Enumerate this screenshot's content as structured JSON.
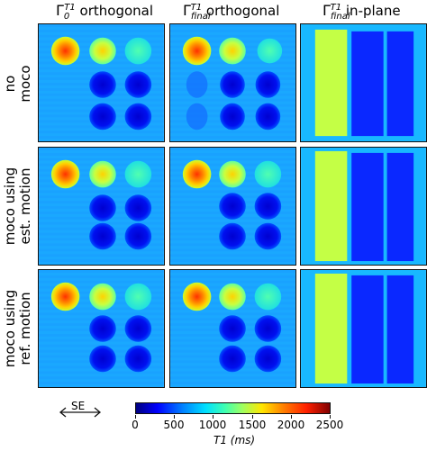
{
  "columns": [
    {
      "prefix": "Γ",
      "sub": "0",
      "sup": "T1",
      "suffix": " orthogonal"
    },
    {
      "prefix": "Γ",
      "sub": "final",
      "sup": "T1",
      "suffix": " orthogonal"
    },
    {
      "prefix": "Γ",
      "sub": "final",
      "sup": "T1",
      "suffix": " in-plane"
    }
  ],
  "rows": [
    {
      "line1": "no",
      "line2": "moco"
    },
    {
      "line1": "moco using",
      "line2": "est. motion"
    },
    {
      "line1": "moco using",
      "line2": "ref. motion"
    }
  ],
  "direction_label": "SE",
  "colorbar": {
    "colormap": "jet",
    "ticks": [
      "0",
      "500",
      "1000",
      "1500",
      "2000",
      "2500"
    ],
    "label_var": "T1",
    "label_unit": "ms"
  }
}
